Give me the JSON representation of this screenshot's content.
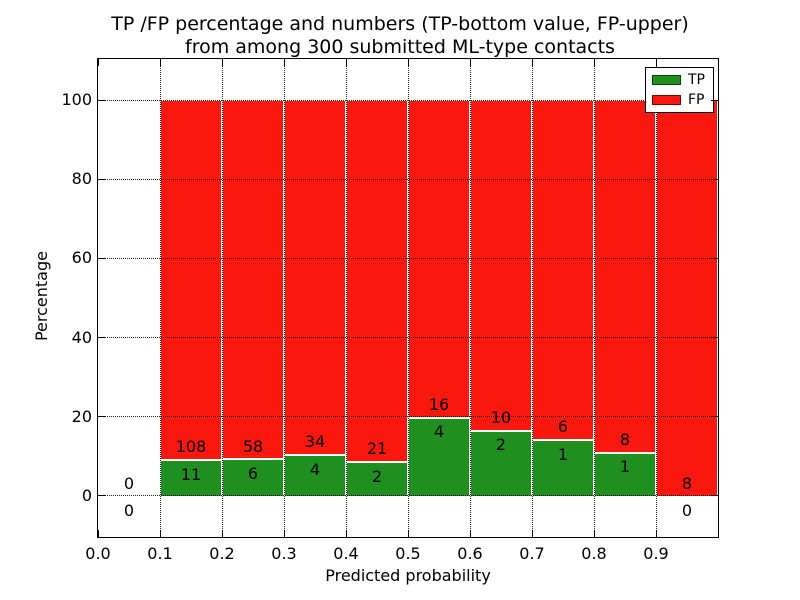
{
  "chart_data": {
    "type": "bar",
    "stacked": true,
    "title_line1": "TP /FP percentage and numbers (TP-bottom value, FP-upper)",
    "title_line2": "from among 300 submitted ML-type contacts",
    "xlabel": "Predicted probability",
    "ylabel": "Percentage",
    "xlim": [
      0.0,
      1.0
    ],
    "ylim": [
      -10.5,
      110.5
    ],
    "x_ticks": [
      "0.0",
      "0.1",
      "0.2",
      "0.3",
      "0.4",
      "0.5",
      "0.6",
      "0.7",
      "0.8",
      "0.9"
    ],
    "y_ticks": [
      "0",
      "20",
      "40",
      "60",
      "80",
      "100"
    ],
    "y_tick_values": [
      0,
      20,
      40,
      60,
      80,
      100
    ],
    "grid": true,
    "legend_position": "upper right",
    "series": [
      {
        "name": "TP",
        "color": "#1f8f1f"
      },
      {
        "name": "FP",
        "color": "#fa170e"
      }
    ],
    "bins": [
      {
        "range": [
          0.0,
          0.1
        ],
        "tp": 0,
        "fp": 0
      },
      {
        "range": [
          0.1,
          0.2
        ],
        "tp": 11,
        "fp": 108
      },
      {
        "range": [
          0.2,
          0.3
        ],
        "tp": 6,
        "fp": 58
      },
      {
        "range": [
          0.3,
          0.4
        ],
        "tp": 4,
        "fp": 34
      },
      {
        "range": [
          0.4,
          0.5
        ],
        "tp": 2,
        "fp": 21
      },
      {
        "range": [
          0.5,
          0.6
        ],
        "tp": 4,
        "fp": 16
      },
      {
        "range": [
          0.6,
          0.7
        ],
        "tp": 2,
        "fp": 10
      },
      {
        "range": [
          0.7,
          0.8
        ],
        "tp": 1,
        "fp": 6
      },
      {
        "range": [
          0.8,
          0.9
        ],
        "tp": 1,
        "fp": 8
      },
      {
        "range": [
          0.9,
          1.0
        ],
        "tp": 0,
        "fp": 8
      }
    ],
    "legend": {
      "items": [
        {
          "label": "TP",
          "color": "#1f8f1f"
        },
        {
          "label": "FP",
          "color": "#fa170e"
        }
      ]
    }
  }
}
